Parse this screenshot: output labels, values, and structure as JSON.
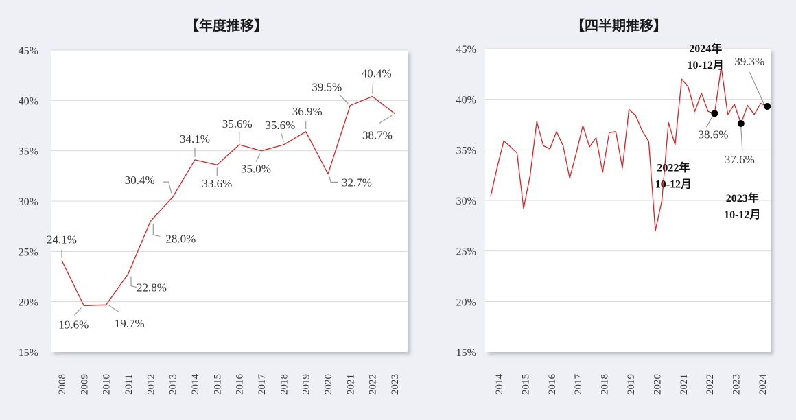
{
  "chart_data": [
    {
      "type": "line",
      "title": "【年度推移】",
      "ylim": [
        15,
        45
      ],
      "yticks": [
        "15%",
        "20%",
        "25%",
        "30%",
        "35%",
        "40%",
        "45%"
      ],
      "categories": [
        "2008",
        "2009",
        "2010",
        "2011",
        "2012",
        "2013",
        "2014",
        "2015",
        "2016",
        "2017",
        "2018",
        "2019",
        "2020",
        "2021",
        "2022",
        "2023"
      ],
      "values": [
        24.1,
        19.6,
        19.7,
        22.8,
        28.0,
        30.4,
        34.1,
        33.6,
        35.6,
        35.0,
        35.6,
        36.9,
        32.7,
        39.5,
        40.4,
        38.7
      ],
      "data_labels": [
        "24.1%",
        "19.6%",
        "19.7%",
        "22.8%",
        "28.0%",
        "30.4%",
        "34.1%",
        "33.6%",
        "35.6%",
        "35.0%",
        "35.6%",
        "36.9%",
        "32.7%",
        "39.5%",
        "40.4%",
        "38.7%"
      ],
      "line_color": "#e02020",
      "grid": true,
      "legend": "none"
    },
    {
      "type": "line",
      "title": "【四半期推移】",
      "ylim": [
        15,
        45
      ],
      "yticks": [
        "15%",
        "20%",
        "25%",
        "30%",
        "35%",
        "40%",
        "45%"
      ],
      "xticks": [
        "2014",
        "2015",
        "2016",
        "2017",
        "2018",
        "2019",
        "2020",
        "2021",
        "2022",
        "2023",
        "2024"
      ],
      "x_start": "2014 Q1",
      "values": [
        30.4,
        33.3,
        35.9,
        35.3,
        34.7,
        29.2,
        32.5,
        37.8,
        35.4,
        35.1,
        36.8,
        35.4,
        32.2,
        34.7,
        37.4,
        35.3,
        36.2,
        32.8,
        36.7,
        36.8,
        33.2,
        39.0,
        38.4,
        36.9,
        35.8,
        27.0,
        30.0,
        37.7,
        35.5,
        42.0,
        41.2,
        38.8,
        40.6,
        38.8,
        38.6,
        43.2,
        38.5,
        39.5,
        37.6,
        39.4,
        38.5,
        39.6,
        39.3
      ],
      "annotations": [
        {
          "index": 34,
          "value_label": "38.6%",
          "period": [
            "2022年",
            "10-12月"
          ]
        },
        {
          "index": 38,
          "value_label": "37.6%",
          "period": [
            "2023年",
            "10-12月"
          ]
        },
        {
          "index": 42,
          "value_label": "39.3%",
          "period": [
            "2024年",
            "10-12月"
          ]
        }
      ],
      "line_color": "#e02020",
      "marker_color": "#000000",
      "grid": true,
      "legend": "none"
    }
  ]
}
